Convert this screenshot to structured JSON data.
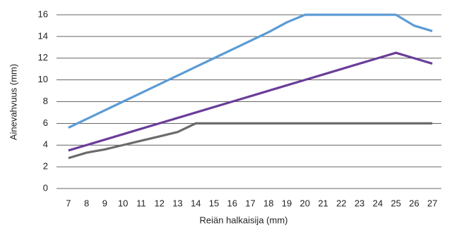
{
  "chart_data": {
    "type": "line",
    "x_label": "Reiän halkaisija (mm)",
    "y_label": "Ainevahvuus (mm)",
    "categories": [
      "7",
      "8",
      "9",
      "10",
      "11",
      "12",
      "13",
      "14",
      "15",
      "16",
      "17",
      "18",
      "19",
      "20",
      "21",
      "22",
      "23",
      "24",
      "25",
      "26",
      "27"
    ],
    "series": [
      {
        "color": "#5b9bd5",
        "values": [
          5.6,
          6.4,
          7.2,
          8.0,
          8.8,
          9.6,
          10.4,
          11.2,
          12.0,
          12.8,
          13.6,
          14.4,
          15.3,
          16,
          16,
          16,
          16,
          16,
          16,
          15,
          14.5
        ]
      },
      {
        "color": "#6a3d9a",
        "values": [
          3.5,
          4.0,
          4.5,
          5.0,
          5.5,
          6.0,
          6.5,
          7.0,
          7.5,
          8.0,
          8.5,
          9.0,
          9.5,
          10.0,
          10.5,
          11.0,
          11.5,
          12.0,
          12.5,
          12.0,
          11.5
        ]
      },
      {
        "color": "#6b6b6b",
        "values": [
          2.8,
          3.3,
          3.6,
          4.0,
          4.4,
          4.8,
          5.2,
          6,
          6,
          6,
          6,
          6,
          6,
          6,
          6,
          6,
          6,
          6,
          6,
          6,
          6
        ]
      }
    ],
    "ylim": [
      0,
      16
    ],
    "yticks": [
      0,
      2,
      4,
      6,
      8,
      10,
      12,
      14,
      16
    ],
    "grid": true
  }
}
